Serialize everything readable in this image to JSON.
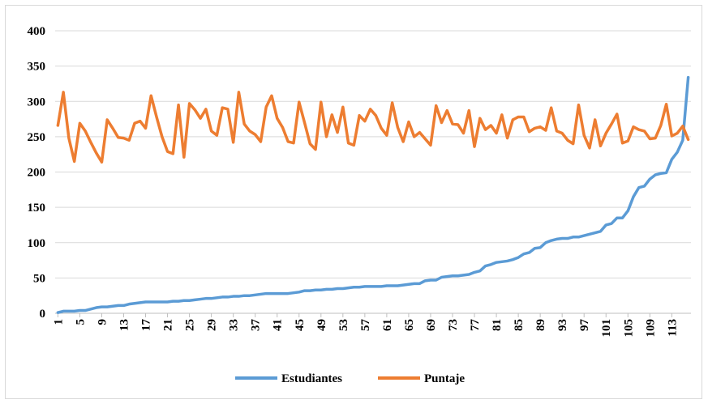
{
  "chart_data": {
    "type": "line",
    "categories": [
      "1",
      null,
      null,
      null,
      "5",
      null,
      null,
      null,
      "9",
      null,
      null,
      null,
      "13",
      null,
      null,
      null,
      "17",
      null,
      null,
      null,
      "21",
      null,
      null,
      null,
      "25",
      null,
      null,
      null,
      "29",
      null,
      null,
      null,
      "33",
      null,
      null,
      null,
      "37",
      null,
      null,
      null,
      "41",
      null,
      null,
      null,
      "45",
      null,
      null,
      null,
      "49",
      null,
      null,
      null,
      "53",
      null,
      null,
      null,
      "57",
      null,
      null,
      null,
      "61",
      null,
      null,
      null,
      "65",
      null,
      null,
      null,
      "69",
      null,
      null,
      null,
      "73",
      null,
      null,
      null,
      "77",
      null,
      null,
      null,
      "81",
      null,
      null,
      null,
      "85",
      null,
      null,
      null,
      "89",
      null,
      null,
      null,
      "93",
      null,
      null,
      null,
      "97",
      null,
      null,
      null,
      "101",
      null,
      null,
      null,
      "105",
      null,
      null,
      null,
      "109",
      null,
      null,
      null,
      "113",
      null,
      null,
      null
    ],
    "series": [
      {
        "name": "Estudiantes",
        "color": "#5b9bd5",
        "values": [
          1,
          3,
          3,
          3,
          4,
          4,
          6,
          8,
          9,
          9,
          10,
          11,
          11,
          13,
          14,
          15,
          16,
          16,
          16,
          16,
          16,
          17,
          17,
          18,
          18,
          19,
          20,
          21,
          21,
          22,
          23,
          23,
          24,
          24,
          25,
          25,
          26,
          27,
          28,
          28,
          28,
          28,
          28,
          29,
          30,
          32,
          32,
          33,
          33,
          34,
          34,
          35,
          35,
          36,
          37,
          37,
          38,
          38,
          38,
          38,
          39,
          39,
          39,
          40,
          41,
          42,
          42,
          46,
          47,
          47,
          51,
          52,
          53,
          53,
          54,
          55,
          58,
          60,
          67,
          69,
          72,
          73,
          74,
          76,
          79,
          84,
          86,
          92,
          93,
          100,
          103,
          105,
          106,
          106,
          108,
          108,
          110,
          112,
          114,
          116,
          125,
          127,
          135,
          135,
          145,
          165,
          178,
          180,
          190,
          196,
          198,
          199,
          218,
          228,
          245,
          334
        ]
      },
      {
        "name": "Puntaje",
        "color": "#ed7d31",
        "values": [
          266,
          313,
          248,
          215,
          269,
          258,
          242,
          227,
          214,
          274,
          262,
          249,
          248,
          245,
          269,
          272,
          262,
          308,
          278,
          250,
          229,
          226,
          295,
          221,
          297,
          288,
          276,
          289,
          258,
          252,
          291,
          289,
          242,
          313,
          268,
          258,
          253,
          243,
          292,
          308,
          276,
          263,
          243,
          241,
          299,
          270,
          240,
          232,
          299,
          250,
          281,
          256,
          292,
          241,
          238,
          280,
          272,
          289,
          280,
          262,
          252,
          298,
          263,
          243,
          271,
          250,
          256,
          247,
          238,
          294,
          270,
          287,
          268,
          267,
          255,
          287,
          236,
          276,
          260,
          266,
          255,
          281,
          248,
          274,
          278,
          278,
          257,
          262,
          264,
          259,
          291,
          258,
          255,
          245,
          240,
          295,
          252,
          234,
          274,
          237,
          255,
          268,
          282,
          241,
          244,
          264,
          260,
          258,
          247,
          248,
          266,
          296,
          251,
          255,
          265,
          246
        ]
      }
    ],
    "ylim": [
      0,
      400
    ],
    "yticks": [
      0,
      50,
      100,
      150,
      200,
      250,
      300,
      350,
      400
    ],
    "grid": true
  }
}
